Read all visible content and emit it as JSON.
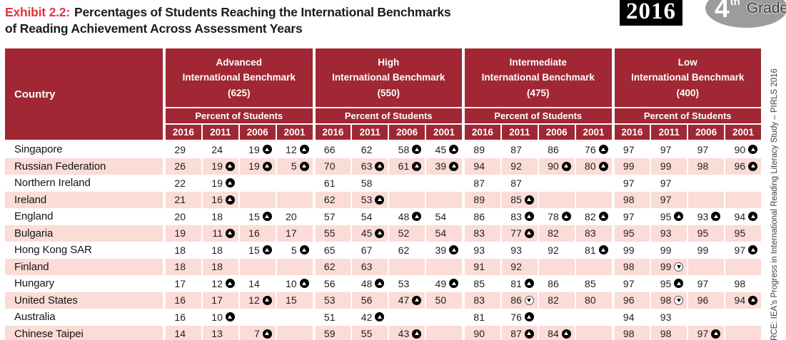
{
  "header": {
    "exhibit_label": "Exhibit 2.2:",
    "title_line1": "Percentages of Students Reaching the International Benchmarks",
    "title_line2": "of Reading Achievement Across Assessment Years",
    "year_badge": "2016",
    "grade_number": "4",
    "grade_suffix": "th",
    "grade_word": "Grade"
  },
  "source_note": "RCE: IEA's Progress in International Reading Literacy Study – PIRLS 2016",
  "colors": {
    "header_maroon": "#a02733",
    "row_pink": "#fbdcd7",
    "exhibit_red": "#e8323e",
    "badge_black": "#000000",
    "oval_gray": "#9c9c9c"
  },
  "symbols": {
    "up": "circled up arrow = percent significantly higher",
    "down": "circled down arrow = percent significantly lower"
  },
  "table": {
    "country_header": "Country",
    "percent_label": "Percent of Students",
    "years": [
      "2016",
      "2011",
      "2006",
      "2001"
    ],
    "benchmarks": [
      {
        "name": "Advanced",
        "subtitle": "International Benchmark",
        "score": "(625)"
      },
      {
        "name": "High",
        "subtitle": "International Benchmark",
        "score": "(550)"
      },
      {
        "name": "Intermediate",
        "subtitle": "International Benchmark",
        "score": "(475)"
      },
      {
        "name": "Low",
        "subtitle": "International Benchmark",
        "score": "(400)"
      }
    ],
    "rows": [
      {
        "country": "Singapore",
        "cells": [
          [
            [
              "29",
              ""
            ],
            [
              "24",
              ""
            ],
            [
              "19",
              "up"
            ],
            [
              "12",
              "up"
            ]
          ],
          [
            [
              "66",
              ""
            ],
            [
              "62",
              ""
            ],
            [
              "58",
              "up"
            ],
            [
              "45",
              "up"
            ]
          ],
          [
            [
              "89",
              ""
            ],
            [
              "87",
              ""
            ],
            [
              "86",
              ""
            ],
            [
              "76",
              "up"
            ]
          ],
          [
            [
              "97",
              ""
            ],
            [
              "97",
              ""
            ],
            [
              "97",
              ""
            ],
            [
              "90",
              "up"
            ]
          ]
        ]
      },
      {
        "country": "Russian Federation",
        "cells": [
          [
            [
              "26",
              ""
            ],
            [
              "19",
              "up"
            ],
            [
              "19",
              "up"
            ],
            [
              "5",
              "up"
            ]
          ],
          [
            [
              "70",
              ""
            ],
            [
              "63",
              "up"
            ],
            [
              "61",
              "up"
            ],
            [
              "39",
              "up"
            ]
          ],
          [
            [
              "94",
              ""
            ],
            [
              "92",
              ""
            ],
            [
              "90",
              "up"
            ],
            [
              "80",
              "up"
            ]
          ],
          [
            [
              "99",
              ""
            ],
            [
              "99",
              ""
            ],
            [
              "98",
              ""
            ],
            [
              "96",
              "up"
            ]
          ]
        ]
      },
      {
        "country": "Northern Ireland",
        "cells": [
          [
            [
              "22",
              ""
            ],
            [
              "19",
              "up"
            ],
            [
              "",
              ""
            ],
            [
              "",
              ""
            ]
          ],
          [
            [
              "61",
              ""
            ],
            [
              "58",
              ""
            ],
            [
              "",
              ""
            ],
            [
              "",
              ""
            ]
          ],
          [
            [
              "87",
              ""
            ],
            [
              "87",
              ""
            ],
            [
              "",
              ""
            ],
            [
              "",
              ""
            ]
          ],
          [
            [
              "97",
              ""
            ],
            [
              "97",
              ""
            ],
            [
              "",
              ""
            ],
            [
              "",
              ""
            ]
          ]
        ]
      },
      {
        "country": "Ireland",
        "cells": [
          [
            [
              "21",
              ""
            ],
            [
              "16",
              "up"
            ],
            [
              "",
              ""
            ],
            [
              "",
              ""
            ]
          ],
          [
            [
              "62",
              ""
            ],
            [
              "53",
              "up"
            ],
            [
              "",
              ""
            ],
            [
              "",
              ""
            ]
          ],
          [
            [
              "89",
              ""
            ],
            [
              "85",
              "up"
            ],
            [
              "",
              ""
            ],
            [
              "",
              ""
            ]
          ],
          [
            [
              "98",
              ""
            ],
            [
              "97",
              ""
            ],
            [
              "",
              ""
            ],
            [
              "",
              ""
            ]
          ]
        ]
      },
      {
        "country": "England",
        "cells": [
          [
            [
              "20",
              ""
            ],
            [
              "18",
              ""
            ],
            [
              "15",
              "up"
            ],
            [
              "20",
              ""
            ]
          ],
          [
            [
              "57",
              ""
            ],
            [
              "54",
              ""
            ],
            [
              "48",
              "up"
            ],
            [
              "54",
              ""
            ]
          ],
          [
            [
              "86",
              ""
            ],
            [
              "83",
              "up"
            ],
            [
              "78",
              "up"
            ],
            [
              "82",
              "up"
            ]
          ],
          [
            [
              "97",
              ""
            ],
            [
              "95",
              "up"
            ],
            [
              "93",
              "up"
            ],
            [
              "94",
              "up"
            ]
          ]
        ]
      },
      {
        "country": "Bulgaria",
        "cells": [
          [
            [
              "19",
              ""
            ],
            [
              "11",
              "up"
            ],
            [
              "16",
              ""
            ],
            [
              "17",
              ""
            ]
          ],
          [
            [
              "55",
              ""
            ],
            [
              "45",
              "up"
            ],
            [
              "52",
              ""
            ],
            [
              "54",
              ""
            ]
          ],
          [
            [
              "83",
              ""
            ],
            [
              "77",
              "up"
            ],
            [
              "82",
              ""
            ],
            [
              "83",
              ""
            ]
          ],
          [
            [
              "95",
              ""
            ],
            [
              "93",
              ""
            ],
            [
              "95",
              ""
            ],
            [
              "95",
              ""
            ]
          ]
        ]
      },
      {
        "country": "Hong Kong SAR",
        "cells": [
          [
            [
              "18",
              ""
            ],
            [
              "18",
              ""
            ],
            [
              "15",
              "up"
            ],
            [
              "5",
              "up"
            ]
          ],
          [
            [
              "65",
              ""
            ],
            [
              "67",
              ""
            ],
            [
              "62",
              ""
            ],
            [
              "39",
              "up"
            ]
          ],
          [
            [
              "93",
              ""
            ],
            [
              "93",
              ""
            ],
            [
              "92",
              ""
            ],
            [
              "81",
              "up"
            ]
          ],
          [
            [
              "99",
              ""
            ],
            [
              "99",
              ""
            ],
            [
              "99",
              ""
            ],
            [
              "97",
              "up"
            ]
          ]
        ]
      },
      {
        "country": "Finland",
        "cells": [
          [
            [
              "18",
              ""
            ],
            [
              "18",
              ""
            ],
            [
              "",
              ""
            ],
            [
              "",
              ""
            ]
          ],
          [
            [
              "62",
              ""
            ],
            [
              "63",
              ""
            ],
            [
              "",
              ""
            ],
            [
              "",
              ""
            ]
          ],
          [
            [
              "91",
              ""
            ],
            [
              "92",
              ""
            ],
            [
              "",
              ""
            ],
            [
              "",
              ""
            ]
          ],
          [
            [
              "98",
              ""
            ],
            [
              "99",
              "down"
            ],
            [
              "",
              ""
            ],
            [
              "",
              ""
            ]
          ]
        ]
      },
      {
        "country": "Hungary",
        "cells": [
          [
            [
              "17",
              ""
            ],
            [
              "12",
              "up"
            ],
            [
              "14",
              ""
            ],
            [
              "10",
              "up"
            ]
          ],
          [
            [
              "56",
              ""
            ],
            [
              "48",
              "up"
            ],
            [
              "53",
              ""
            ],
            [
              "49",
              "up"
            ]
          ],
          [
            [
              "85",
              ""
            ],
            [
              "81",
              "up"
            ],
            [
              "86",
              ""
            ],
            [
              "85",
              ""
            ]
          ],
          [
            [
              "97",
              ""
            ],
            [
              "95",
              "up"
            ],
            [
              "97",
              ""
            ],
            [
              "98",
              ""
            ]
          ]
        ]
      },
      {
        "country": "United States",
        "cells": [
          [
            [
              "16",
              ""
            ],
            [
              "17",
              ""
            ],
            [
              "12",
              "up"
            ],
            [
              "15",
              ""
            ]
          ],
          [
            [
              "53",
              ""
            ],
            [
              "56",
              ""
            ],
            [
              "47",
              "up"
            ],
            [
              "50",
              ""
            ]
          ],
          [
            [
              "83",
              ""
            ],
            [
              "86",
              "down"
            ],
            [
              "82",
              ""
            ],
            [
              "80",
              ""
            ]
          ],
          [
            [
              "96",
              ""
            ],
            [
              "98",
              "down"
            ],
            [
              "96",
              ""
            ],
            [
              "94",
              "up"
            ]
          ]
        ]
      },
      {
        "country": "Australia",
        "cells": [
          [
            [
              "16",
              ""
            ],
            [
              "10",
              "up"
            ],
            [
              "",
              ""
            ],
            [
              "",
              ""
            ]
          ],
          [
            [
              "51",
              ""
            ],
            [
              "42",
              "up"
            ],
            [
              "",
              ""
            ],
            [
              "",
              ""
            ]
          ],
          [
            [
              "81",
              ""
            ],
            [
              "76",
              "up"
            ],
            [
              "",
              ""
            ],
            [
              "",
              ""
            ]
          ],
          [
            [
              "94",
              ""
            ],
            [
              "93",
              ""
            ],
            [
              "",
              ""
            ],
            [
              "",
              ""
            ]
          ]
        ]
      },
      {
        "country": "Chinese Taipei",
        "cells": [
          [
            [
              "14",
              ""
            ],
            [
              "13",
              ""
            ],
            [
              "7",
              "up"
            ],
            [
              "",
              ""
            ]
          ],
          [
            [
              "59",
              ""
            ],
            [
              "55",
              ""
            ],
            [
              "43",
              "up"
            ],
            [
              "",
              ""
            ]
          ],
          [
            [
              "90",
              ""
            ],
            [
              "87",
              "up"
            ],
            [
              "84",
              "up"
            ],
            [
              "",
              ""
            ]
          ],
          [
            [
              "98",
              ""
            ],
            [
              "98",
              ""
            ],
            [
              "97",
              "up"
            ],
            [
              "",
              ""
            ]
          ]
        ]
      }
    ]
  }
}
